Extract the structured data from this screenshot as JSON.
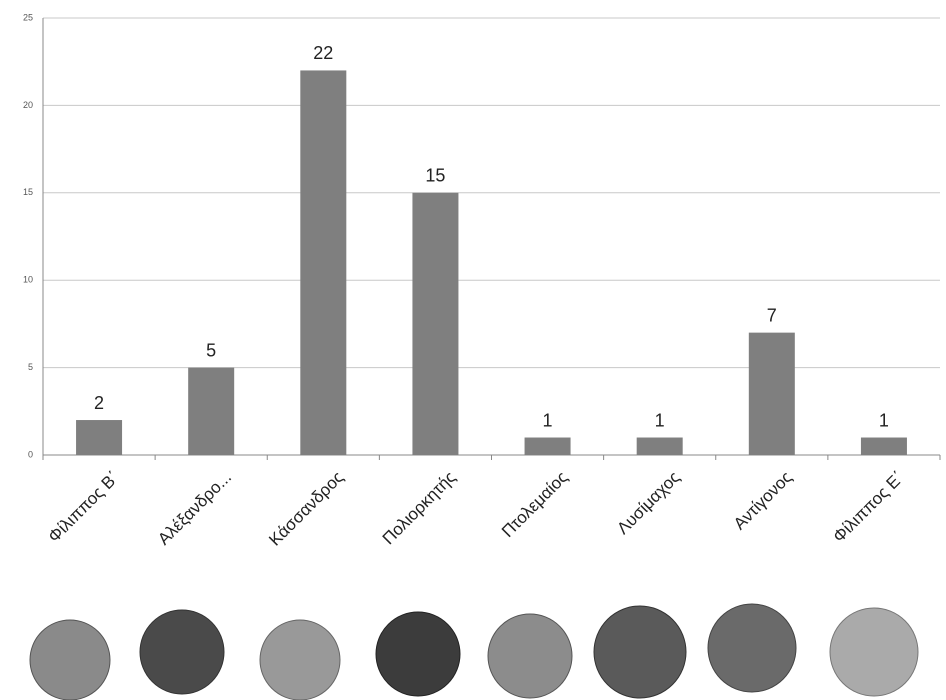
{
  "chart_data": {
    "type": "bar",
    "categories": [
      "Φίλιππος Β΄",
      "Αλέξανδρο...",
      "Κάσσανδρος",
      "Πολιορκητής",
      "Πτολεμαίος",
      "Λυσίμαχος",
      "Αντίγονος",
      "Φίλιππος Ε΄"
    ],
    "values": [
      2,
      5,
      22,
      15,
      1,
      1,
      7,
      1
    ],
    "color": "#7f7f7f",
    "ylim": [
      0,
      25
    ],
    "yticks": [
      0,
      5,
      10,
      15,
      20,
      25
    ],
    "grid": true
  }
}
